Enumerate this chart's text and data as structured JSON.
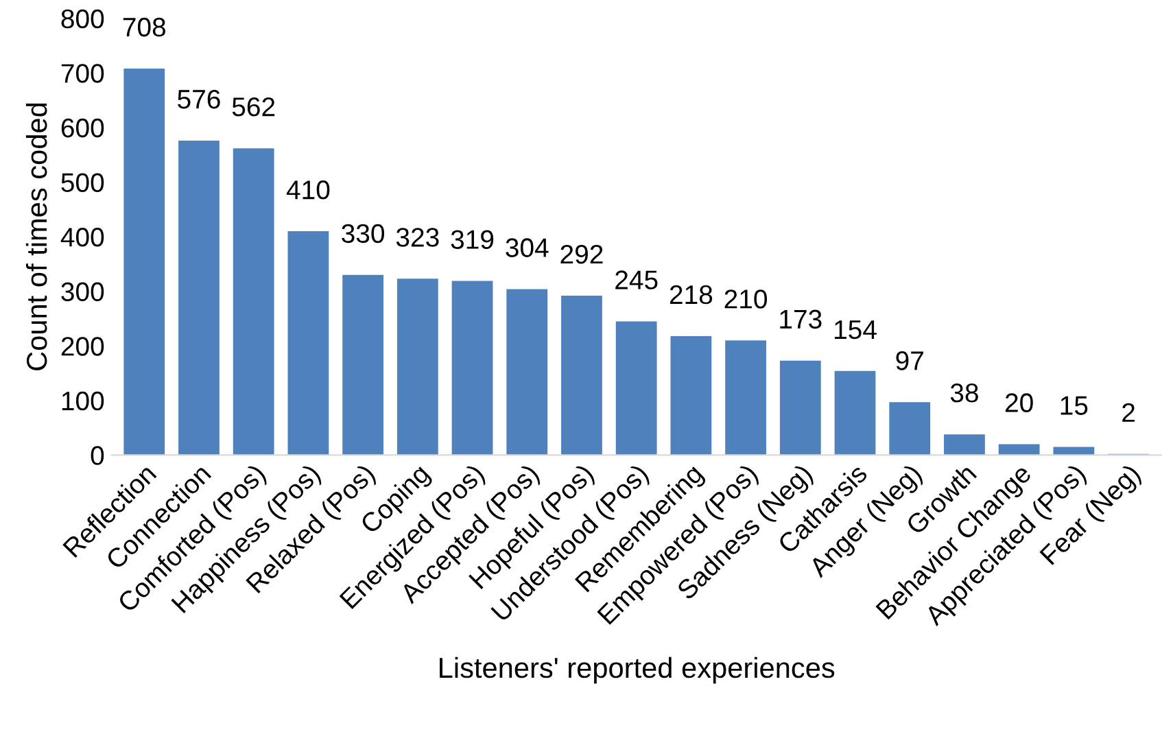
{
  "chart_data": {
    "type": "bar",
    "xlabel": "Listeners' reported experiences",
    "ylabel": "Count of times coded",
    "categories": [
      "Reflection",
      "Connection",
      "Comforted (Pos)",
      "Happiness (Pos)",
      "Relaxed (Pos)",
      "Coping",
      "Energized (Pos)",
      "Accepted (Pos)",
      "Hopeful (Pos)",
      "Understood (Pos)",
      "Remembering",
      "Empowered (Pos)",
      "Sadness (Neg)",
      "Catharsis",
      "Anger (Neg)",
      "Growth",
      "Behavior Change",
      "Appreciated (Pos)",
      "Fear (Neg)"
    ],
    "values": [
      708,
      576,
      562,
      410,
      330,
      323,
      319,
      304,
      292,
      245,
      218,
      210,
      173,
      154,
      97,
      38,
      20,
      15,
      2
    ],
    "color": "#4f81bd",
    "ylim": [
      0,
      800
    ],
    "yticks": [
      0,
      100,
      200,
      300,
      400,
      500,
      600,
      700,
      800
    ],
    "data_labels": true,
    "grid": false,
    "legend": false
  }
}
